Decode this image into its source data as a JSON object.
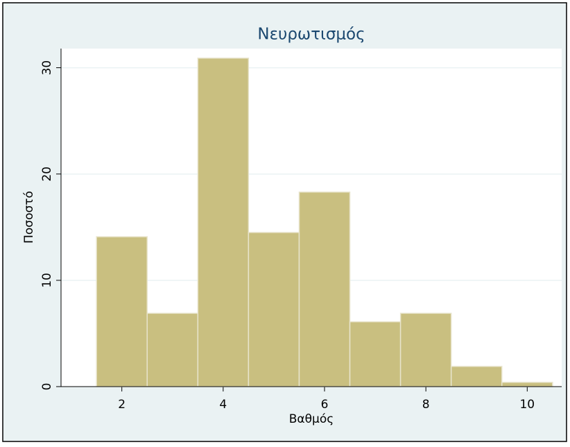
{
  "chart_data": {
    "type": "histogram",
    "title": "Νευρωτισμός",
    "x_label": "Βαθμός",
    "y_label": "Ποσοστό",
    "bins": [
      1.5,
      2.5,
      3.5,
      4.5,
      5.5,
      6.5,
      7.5,
      8.5,
      9.5,
      10.5
    ],
    "values": [
      14.1,
      6.9,
      30.9,
      14.5,
      18.3,
      6.1,
      6.9,
      1.9,
      0.4
    ],
    "color": "#c9bf80",
    "xlim": [
      0.8,
      10.68
    ],
    "xticks": [
      2,
      4,
      6,
      8,
      10
    ],
    "ylim": [
      0,
      31.8
    ],
    "yticks": [
      0,
      10,
      20,
      30
    ],
    "grid": true
  }
}
